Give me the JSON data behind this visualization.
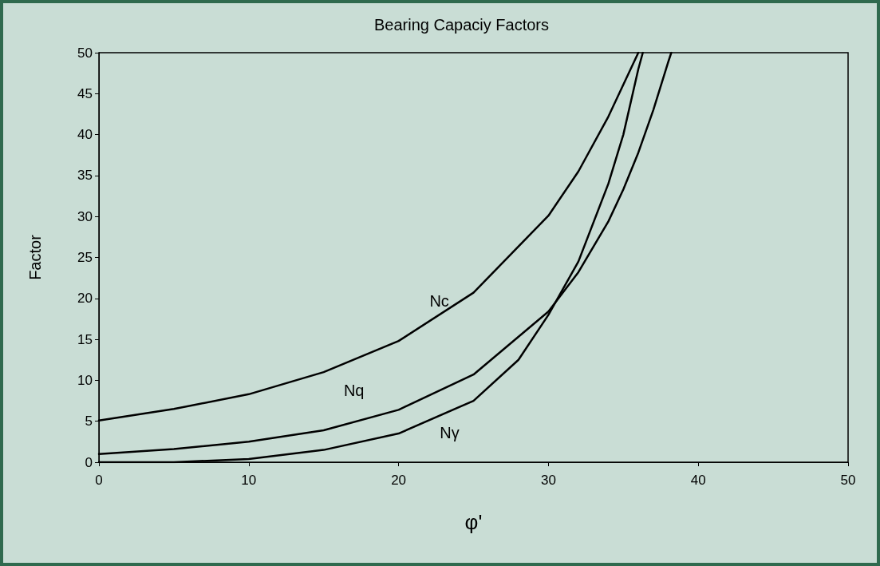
{
  "chart_data": {
    "type": "line",
    "title": "Bearing Capaciy Factors",
    "xlabel": "φ'",
    "ylabel": "Factor",
    "xlim": [
      0,
      50
    ],
    "xticks": [
      0,
      10,
      20,
      30,
      40,
      50
    ],
    "ylim": [
      0,
      50
    ],
    "yticks": [
      0,
      5,
      10,
      15,
      20,
      25,
      30,
      35,
      40,
      45,
      50
    ],
    "grid": false,
    "marker": "none",
    "line_style": "solid",
    "series": [
      {
        "name": "Nc",
        "color": "#000000",
        "x": [
          0,
          5,
          10,
          15,
          20,
          25,
          30,
          32,
          34,
          35,
          36
        ],
        "values": [
          5.1,
          6.5,
          8.3,
          11,
          14.8,
          20.7,
          30.1,
          35.5,
          42.2,
          46.1,
          50
        ]
      },
      {
        "name": "Nq",
        "color": "#000000",
        "x": [
          0,
          5,
          10,
          15,
          20,
          25,
          30,
          32,
          34,
          35,
          36,
          37,
          38,
          38.2
        ],
        "values": [
          1,
          1.6,
          2.5,
          3.9,
          6.4,
          10.7,
          18.4,
          23.2,
          29.4,
          33.3,
          37.8,
          43,
          48.9,
          50
        ]
      },
      {
        "name": "Nγ",
        "color": "#000000",
        "x": [
          0,
          5,
          10,
          15,
          20,
          25,
          28,
          30,
          32,
          34,
          35,
          36,
          36.3
        ],
        "values": [
          0,
          0,
          0.4,
          1.5,
          3.5,
          7.5,
          12.5,
          18,
          24.5,
          34,
          40,
          48,
          50
        ]
      }
    ]
  }
}
